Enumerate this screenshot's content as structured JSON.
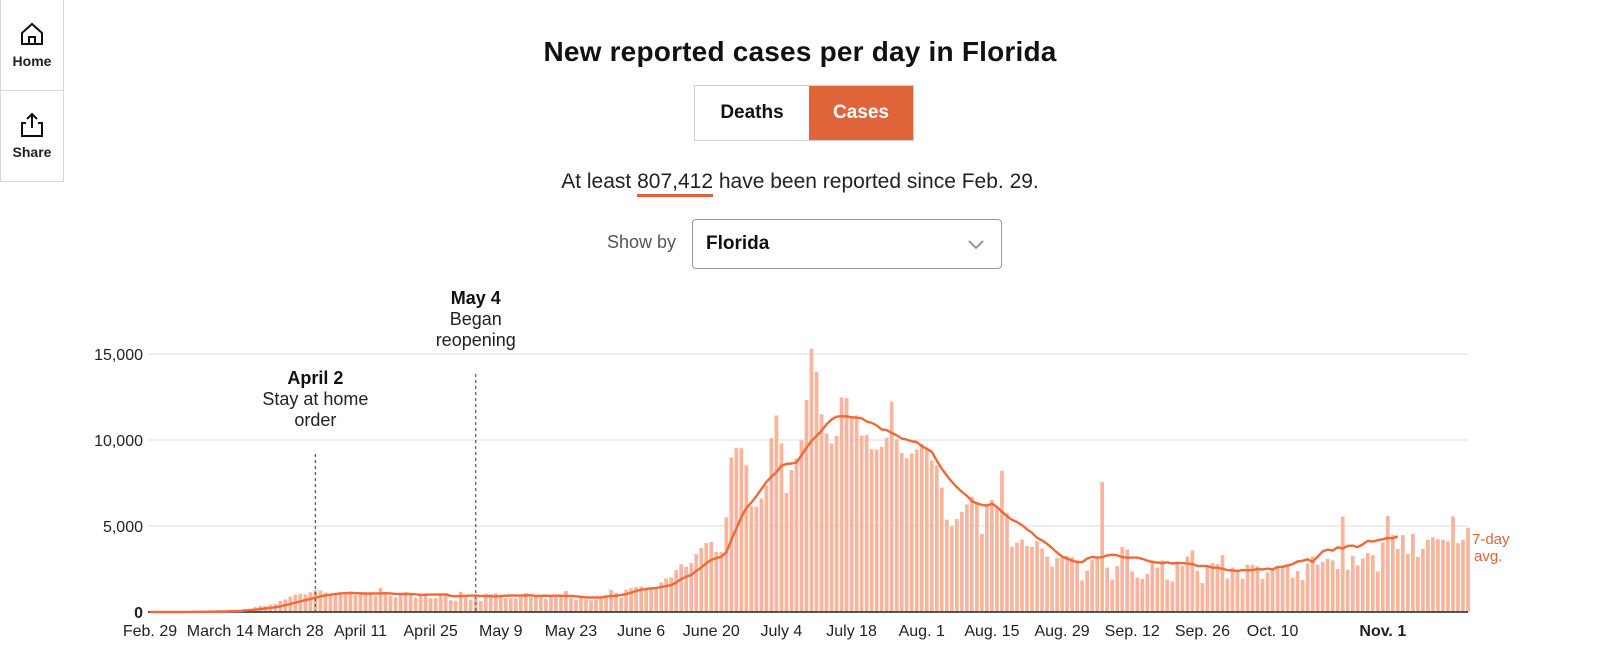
{
  "sidebar": {
    "items": [
      {
        "label": "Home",
        "icon": "home-icon"
      },
      {
        "label": "Share",
        "icon": "share-icon"
      }
    ]
  },
  "header": {
    "title": "New reported cases per day in Florida"
  },
  "toggle": {
    "options": [
      "Deaths",
      "Cases"
    ],
    "selected": "Cases"
  },
  "summary": {
    "prefix": "At least",
    "total": "807,412",
    "suffix": "have been reported since Feb. 29."
  },
  "filter": {
    "label": "Show by",
    "value": "Florida"
  },
  "colors": {
    "accent": "#e0643a",
    "bar": "#f8b49c",
    "grid": "#dddddd",
    "line": "#ef6a38"
  },
  "chart_data": {
    "type": "bar",
    "title": "New reported cases per day in Florida",
    "ylim": [
      0,
      15000
    ],
    "y_ticks": [
      {
        "value": 0,
        "label": "0"
      },
      {
        "value": 5000,
        "label": "5,000"
      },
      {
        "value": 10000,
        "label": "10,000"
      },
      {
        "value": 15000,
        "label": "15,000"
      }
    ],
    "x_ticks": [
      {
        "day": 0,
        "label": "Feb. 29"
      },
      {
        "day": 14,
        "label": "March 14"
      },
      {
        "day": 28,
        "label": "March 28"
      },
      {
        "day": 42,
        "label": "April 11"
      },
      {
        "day": 56,
        "label": "April 25"
      },
      {
        "day": 70,
        "label": "May 9"
      },
      {
        "day": 84,
        "label": "May 23"
      },
      {
        "day": 98,
        "label": "June 6"
      },
      {
        "day": 112,
        "label": "June 20"
      },
      {
        "day": 126,
        "label": "July 4"
      },
      {
        "day": 140,
        "label": "July 18"
      },
      {
        "day": 154,
        "label": "Aug. 1"
      },
      {
        "day": 168,
        "label": "Aug. 15"
      },
      {
        "day": 182,
        "label": "Aug. 29"
      },
      {
        "day": 196,
        "label": "Sep. 12"
      },
      {
        "day": 210,
        "label": "Sep. 26"
      },
      {
        "day": 224,
        "label": "Oct. 10"
      },
      {
        "day": 246,
        "label": "Nov. 1",
        "bold": true
      }
    ],
    "annotations": [
      {
        "day": 33,
        "date": "April 2",
        "text": [
          "Stay at home",
          "order"
        ]
      },
      {
        "day": 65,
        "date": "May 4",
        "text": [
          "Began",
          "reopening"
        ]
      }
    ],
    "avg_label": [
      "7-day",
      "avg."
    ],
    "series": [
      {
        "name": "New reported cases",
        "values": [
          0,
          0,
          0,
          0,
          1,
          3,
          4,
          7,
          12,
          16,
          18,
          22,
          25,
          36,
          46,
          63,
          70,
          104,
          130,
          185,
          206,
          283,
          359,
          353,
          431,
          461,
          640,
          730,
          890,
          1004,
          1062,
          1025,
          1150,
          1273,
          1246,
          1131,
          971,
          1025,
          1002,
          1145,
          1181,
          1004,
          1165,
          1077,
          1091,
          946,
          1413,
          1014,
          923,
          852,
          1043,
          1145,
          993,
          841,
          1072,
          1063,
          804,
          817,
          1052,
          1087,
          684,
          642,
          1176,
          813,
          719,
          819,
          649,
          1054,
          1028,
          1092,
          912,
          798,
          789,
          771,
          874,
          1097,
          891,
          1011,
          926,
          763,
          925,
          1004,
          969,
          1217,
          810,
          703,
          930,
          732,
          681,
          714,
          787,
          958,
          1280,
          1115,
          810,
          1297,
          1384,
          1444,
          1484,
          1326,
          1361,
          1419,
          1722,
          1950,
          2004,
          2432,
          2769,
          2622,
          2850,
          3366,
          3725,
          4003,
          4076,
          3497,
          3479,
          5497,
          8986,
          9549,
          9521,
          8530,
          6161,
          6120,
          6605,
          7347,
          10109,
          11423,
          9799,
          6917,
          8255,
          8925,
          9967,
          12318,
          15298,
          13964,
          11491,
          10388,
          9797,
          10237,
          12472,
          12431,
          11391,
          11431,
          10260,
          10286,
          9473,
          9446,
          9607,
          10127,
          12232,
          10049,
          9242,
          8943,
          9214,
          9440,
          9776,
          9578,
          8804,
          8524,
          7233,
          5370,
          4975,
          5409,
          5825,
          6253,
          6707,
          6412,
          4547,
          6152,
          6520,
          6094,
          8211,
          5749,
          3796,
          4027,
          4217,
          3829,
          3779,
          4120,
          3691,
          3220,
          2632,
          3138,
          3164,
          3266,
          3185,
          3013,
          1838,
          2404,
          3009,
          3178,
          7550,
          2583,
          1882,
          2673,
          3779,
          3638,
          2355,
          2001,
          1925,
          2215,
          3002,
          2584,
          3006,
          1884,
          1774,
          2794,
          2673,
          3218,
          3573,
          2395,
          1675,
          2590,
          2843,
          2786,
          3306,
          1954,
          2583,
          2400,
          1941,
          2744,
          2751,
          2661,
          1918,
          2302,
          2521,
          2668,
          2645,
          2778,
          1998,
          2383,
          1865,
          2810,
          3233,
          2752,
          2908,
          3087,
          3000,
          2500,
          5544,
          2451,
          3255,
          2711,
          3115,
          3435,
          3300,
          2355,
          4044,
          5592,
          4471,
          3662,
          4471,
          3377,
          4544,
          3200,
          3662,
          4198,
          4337,
          4231,
          4200,
          4108,
          5558,
          4000,
          4200,
          4900
        ]
      }
    ],
    "seven_day_avg": [
      0,
      0,
      0,
      0,
      1,
      2,
      2,
      4,
      6,
      9,
      12,
      16,
      20,
      25,
      30,
      37,
      44,
      54,
      66,
      85,
      107,
      136,
      170,
      204,
      236,
      277,
      334,
      394,
      464,
      540,
      616,
      689,
      762,
      835,
      905,
      965,
      1004,
      1051,
      1078,
      1098,
      1111,
      1099,
      1081,
      1074,
      1083,
      1077,
      1079,
      1094,
      1073,
      1051,
      1055,
      1058,
      1055,
      1031,
      997,
      1006,
      1009,
      1010,
      1017,
      1021,
      940,
      910,
      928,
      931,
      954,
      952,
      934,
      936,
      916,
      907,
      932,
      948,
      957,
      953,
      957,
      961,
      976,
      928,
      940,
      947,
      944,
      949,
      949,
      935,
      930,
      914,
      882,
      848,
      845,
      844,
      848,
      898,
      932,
      939,
      980,
      1043,
      1123,
      1224,
      1291,
      1335,
      1374,
      1397,
      1452,
      1505,
      1572,
      1718,
      1920,
      2049,
      2157,
      2377,
      2586,
      2841,
      3028,
      3136,
      3215,
      3466,
      4206,
      4850,
      5511,
      6059,
      6368,
      6741,
      7156,
      7561,
      7865,
      8136,
      8504,
      8603,
      8632,
      8698,
      9111,
      9557,
      9950,
      10236,
      10537,
      10906,
      11189,
      11352,
      11382,
      11368,
      11326,
      11294,
      11265,
      11077,
      10999,
      10849,
      10609,
      10574,
      10405,
      10275,
      10089,
      10023,
      9927,
      9884,
      9638,
      9490,
      9312,
      8794,
      8326,
      7934,
      7575,
      7263,
      6989,
      6754,
      6448,
      6312,
      6229,
      6194,
      6288,
      6116,
      5830,
      5571,
      5359,
      5230,
      5055,
      4807,
      4605,
      4318,
      4164,
      3963,
      3713,
      3454,
      3227,
      3103,
      2989,
      2894,
      2901,
      3107,
      3204,
      3165,
      3185,
      3293,
      3334,
      3297,
      3194,
      3158,
      3160,
      3164,
      3087,
      2987,
      2908,
      2876,
      2844,
      2888,
      2817,
      2863,
      2843,
      2812,
      2791,
      2680,
      2681,
      2670,
      2578,
      2573,
      2518,
      2438,
      2420,
      2390,
      2437,
      2427,
      2440,
      2493,
      2471,
      2526,
      2473,
      2622,
      2629,
      2704,
      2782,
      2938,
      2977,
      3072,
      2914,
      3223,
      3523,
      3630,
      3572,
      3761,
      3698,
      3837,
      3858,
      3773,
      3934,
      4135,
      4095,
      4179,
      4224,
      4313,
      4287,
      4397
    ]
  }
}
